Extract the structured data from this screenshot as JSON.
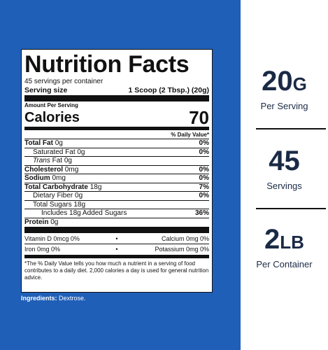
{
  "label": {
    "title": "Nutrition Facts",
    "servings_per_container": "45 servings per container",
    "serving_size_label": "Serving size",
    "serving_size_value": "1 Scoop (2 Tbsp.) (20g)",
    "amount_per_serving": "Amount Per Serving",
    "calories_label": "Calories",
    "calories_value": "70",
    "daily_value_header": "% Daily Value*",
    "nutrients": [
      {
        "name": "Total Fat",
        "amount": "0g",
        "dv": "0%"
      },
      {
        "name": "Saturated Fat",
        "amount": "0g",
        "dv": "0%"
      },
      {
        "name": "Trans",
        "suffix": "Fat",
        "amount": "0g",
        "dv": ""
      },
      {
        "name": "Cholesterol",
        "amount": "0mg",
        "dv": "0%"
      },
      {
        "name": "Sodium",
        "amount": "0mg",
        "dv": "0%"
      },
      {
        "name": "Total Carbohydrate",
        "amount": "18g",
        "dv": "7%"
      },
      {
        "name": "Dietary Fiber",
        "amount": "0g",
        "dv": "0%"
      },
      {
        "name": "Total Sugars",
        "amount": "18g",
        "dv": ""
      },
      {
        "name": "Includes 18g Added Sugars",
        "amount": "",
        "dv": "36%"
      },
      {
        "name": "Protein",
        "amount": "0g",
        "dv": ""
      }
    ],
    "vitamins": [
      {
        "left": "Vitamin D 0mcg 0%",
        "right": "Calcium 0mg 0%"
      },
      {
        "left": "Iron 0mg 0%",
        "right": "Potassium 0mg 0%"
      }
    ],
    "bullet": "•",
    "footnote": "*The % Daily Value tells you how much a nutrient in a serving of food contributes to a daily diet. 2,000 calories a day is used for general nutrition advice."
  },
  "ingredients": {
    "label": "Ingredients:",
    "value": "Dextrose."
  },
  "stats": [
    {
      "value": "20",
      "suffix": "G",
      "caption": "Per Serving"
    },
    {
      "value": "45",
      "suffix": "",
      "caption": "Servings"
    },
    {
      "value": "2",
      "suffix": "LB",
      "caption": "Per Container"
    }
  ]
}
